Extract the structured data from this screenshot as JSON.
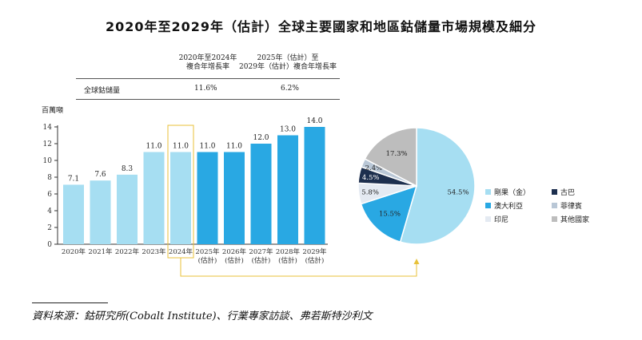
{
  "title": "2020年至2029年（估計）全球主要國家和地區鈷儲量市場規模及細分",
  "cagr_table": {
    "col1_line1": "2020年至2024年",
    "col1_line2": "複合年增長率",
    "col2_line1": "2025年（估計）至",
    "col2_line2": "2029年（估計）複合年增長率",
    "row_label": "全球鈷儲量",
    "col1_value": "11.6%",
    "col2_value": "6.2%"
  },
  "unit_label": "百萬噸",
  "source": "資料來源：鈷研究所(Cobalt Institute)、行業專家訪談、弗若斯特沙利文",
  "chart_data": [
    {
      "type": "bar",
      "ylabel": "百萬噸",
      "ylim": [
        0,
        14
      ],
      "yticks": [
        0,
        2,
        4,
        6,
        8,
        10,
        12,
        14
      ],
      "categories": [
        {
          "line1": "2020年",
          "line2": ""
        },
        {
          "line1": "2021年",
          "line2": ""
        },
        {
          "line1": "2022年",
          "line2": ""
        },
        {
          "line1": "2023年",
          "line2": ""
        },
        {
          "line1": "2024年",
          "line2": ""
        },
        {
          "line1": "2025年",
          "line2": "(估計)"
        },
        {
          "line1": "2026年",
          "line2": "(估計)"
        },
        {
          "line1": "2027年",
          "line2": "(估計)"
        },
        {
          "line1": "2028年",
          "line2": "(估計)"
        },
        {
          "line1": "2029年",
          "line2": "(估計)"
        }
      ],
      "values": [
        7.1,
        7.6,
        8.3,
        11.0,
        11.0,
        11.0,
        11.0,
        12.0,
        13.0,
        14.0
      ],
      "value_labels": [
        "7.1",
        "7.6",
        "8.3",
        "11.0",
        "11.0",
        "11.0",
        "11.0",
        "12.0",
        "13.0",
        "14.0"
      ],
      "colors": {
        "historical": "#A6DEF2",
        "forecast": "#29A8E3"
      },
      "highlighted_category": "2024年",
      "highlight_color": "#E8C23A"
    },
    {
      "type": "pie",
      "slices": [
        {
          "name": "剛果（金）",
          "value": 54.5,
          "label": "54.5%",
          "color": "#A6DEF2"
        },
        {
          "name": "澳大利亞",
          "value": 15.5,
          "label": "15.5%",
          "color": "#29A8E3"
        },
        {
          "name": "印尼",
          "value": 5.8,
          "label": "5.8%",
          "color": "#E4EAF2"
        },
        {
          "name": "古巴",
          "value": 4.5,
          "label": "4.5%",
          "color": "#1D2F4E"
        },
        {
          "name": "菲律賓",
          "value": 2.4,
          "label": "2.4%",
          "color": "#B9C7D6"
        },
        {
          "name": "其他國家",
          "value": 17.3,
          "label": "17.3%",
          "color": "#BDBDBD"
        }
      ],
      "legend": [
        {
          "name": "剛果（金）",
          "color": "#A6DEF2"
        },
        {
          "name": "古巴",
          "color": "#1D2F4E"
        },
        {
          "name": "澳大利亞",
          "color": "#29A8E3"
        },
        {
          "name": "菲律賓",
          "color": "#B9C7D6"
        },
        {
          "name": "印尼",
          "color": "#E4EAF2"
        },
        {
          "name": "其他國家",
          "color": "#BDBDBD"
        }
      ],
      "legend_position": "right"
    }
  ]
}
